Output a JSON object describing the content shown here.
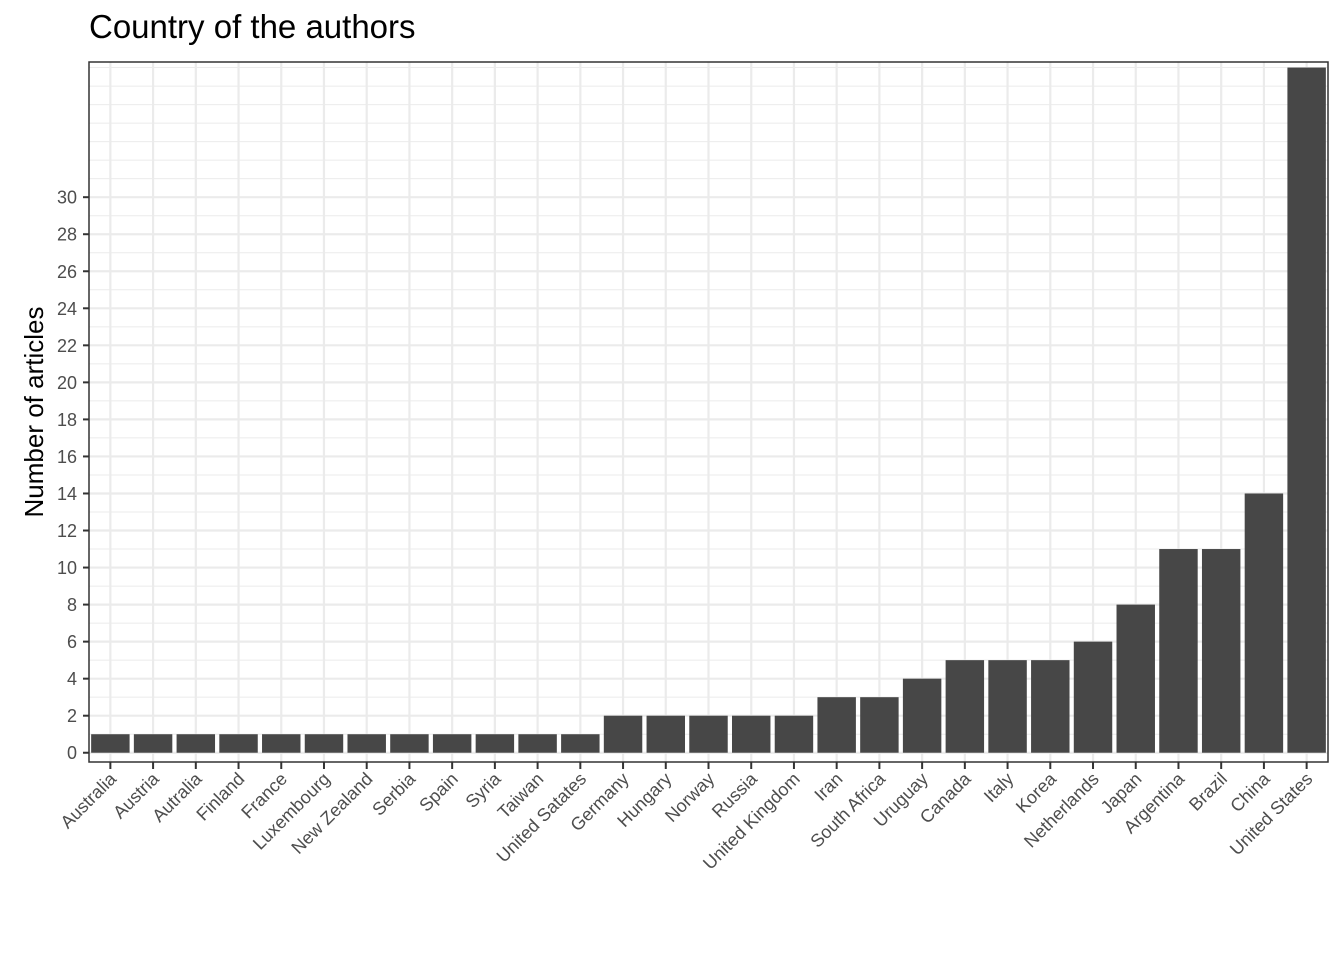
{
  "chart_data": {
    "type": "bar",
    "title": "Country of the authors",
    "xlabel": "",
    "ylabel": "Number of articles",
    "categories": [
      "Australia",
      "Austria",
      "Autralia",
      "Finland",
      "France",
      "Luxembourg",
      "New Zealand",
      "Serbia",
      "Spain",
      "Syria",
      "Taiwan",
      "United Satates",
      "Germany",
      "Hungary",
      "Norway",
      "Russia",
      "United Kingdom",
      "Iran",
      "South Africa",
      "Uruguay",
      "Canada",
      "Italy",
      "Korea",
      "Netherlands",
      "Japan",
      "Argentina",
      "Brazil",
      "China",
      "United States"
    ],
    "values": [
      1,
      1,
      1,
      1,
      1,
      1,
      1,
      1,
      1,
      1,
      1,
      1,
      2,
      2,
      2,
      2,
      2,
      3,
      3,
      4,
      5,
      5,
      5,
      6,
      8,
      11,
      11,
      14,
      37
    ],
    "y_ticks": [
      0,
      2,
      4,
      6,
      8,
      10,
      12,
      14,
      16,
      18,
      20,
      22,
      24,
      26,
      28,
      30
    ],
    "ylim": [
      -0.5,
      37.3
    ],
    "grid": true,
    "bar_color": "#474747",
    "grid_color": "#ebebeb",
    "panel_border_color": "#333333"
  }
}
